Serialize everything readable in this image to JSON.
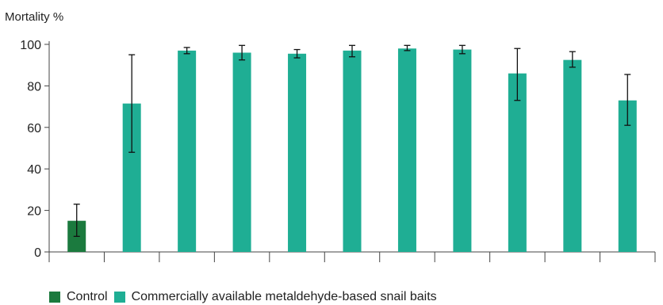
{
  "chart_data": {
    "type": "bar",
    "title": "",
    "xlabel": "",
    "ylabel": "Mortality %",
    "ylim": [
      0,
      100
    ],
    "yticks": [
      0,
      20,
      40,
      60,
      80,
      100
    ],
    "grid": false,
    "legend_position": "bottom-left",
    "colors": {
      "control": "#1b7a3e",
      "bait": "#1fae94",
      "axis": "#444444",
      "error": "#111111"
    },
    "legend": [
      {
        "label": "Control",
        "color": "#1b7a3e"
      },
      {
        "label": "Commercially available metaldehyde-based snail baits",
        "color": "#1fae94"
      }
    ],
    "bars": [
      {
        "group": "Control",
        "value": 15,
        "err_low": 7.5,
        "err_high": 23
      },
      {
        "group": "Commercially available metaldehyde-based snail baits",
        "value": 71.5,
        "err_low": 48,
        "err_high": 95
      },
      {
        "group": "Commercially available metaldehyde-based snail baits",
        "value": 97,
        "err_low": 95.5,
        "err_high": 98.5
      },
      {
        "group": "Commercially available metaldehyde-based snail baits",
        "value": 96,
        "err_low": 92.5,
        "err_high": 99.5
      },
      {
        "group": "Commercially available metaldehyde-based snail baits",
        "value": 95.5,
        "err_low": 93.5,
        "err_high": 97.5
      },
      {
        "group": "Commercially available metaldehyde-based snail baits",
        "value": 97,
        "err_low": 94,
        "err_high": 99.5
      },
      {
        "group": "Commercially available metaldehyde-based snail baits",
        "value": 98,
        "err_low": 97,
        "err_high": 99.5
      },
      {
        "group": "Commercially available metaldehyde-based snail baits",
        "value": 97.5,
        "err_low": 95.5,
        "err_high": 99.5
      },
      {
        "group": "Commercially available metaldehyde-based snail baits",
        "value": 86,
        "err_low": 73,
        "err_high": 98
      },
      {
        "group": "Commercially available metaldehyde-based snail baits",
        "value": 92.5,
        "err_low": 89,
        "err_high": 96.5
      },
      {
        "group": "Commercially available metaldehyde-based snail baits",
        "value": 73,
        "err_low": 61,
        "err_high": 85.5
      }
    ]
  }
}
